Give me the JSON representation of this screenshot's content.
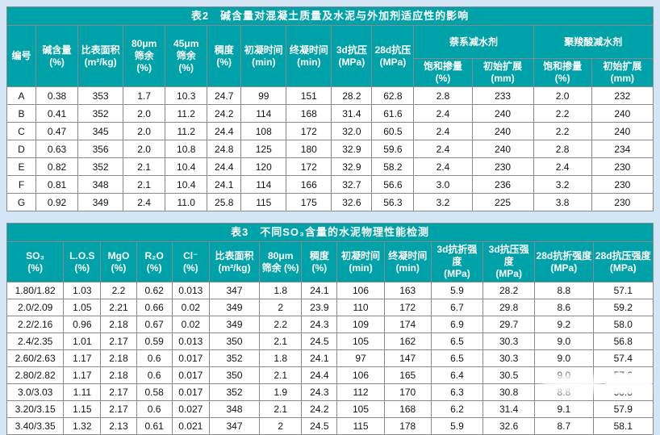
{
  "page": {
    "background_color": "#d3e5f4",
    "header_color": "#00a2aa",
    "cell_color": "#ffffff",
    "border_color": "#8a8a8a"
  },
  "table2": {
    "title": "表2　碱含量对混凝土质量及水泥与外加剂适应性的影响",
    "columns": {
      "no": "编号",
      "alkali": "碱含量\n(%)",
      "surface": "比表面积\n(m²/kg)",
      "sieve80": "80μm\n筛余\n(%)",
      "sieve45": "45μm\n筛余\n(%)",
      "consistency": "稠度\n(%)",
      "initial_set": "初凝时间\n(min)",
      "final_set": "终凝时间\n(min)",
      "comp3d": "3d抗压\n(MPa)",
      "comp28d": "28d抗压\n(MPa)",
      "naphthalene_group": "萘系减水剂",
      "polycarboxylate_group": "聚羧酸减水剂",
      "sat_dosage_n": "饱和掺量\n(%)",
      "init_spread_n": "初始扩展\n(mm)",
      "sat_dosage_p": "饱和掺量\n(%)",
      "init_spread_p": "初始扩展\n(mm)"
    },
    "rows": [
      [
        "A",
        "0.38",
        "353",
        "1.7",
        "10.3",
        "24.7",
        "99",
        "151",
        "28.2",
        "62.8",
        "2.8",
        "233",
        "2.0",
        "232"
      ],
      [
        "B",
        "0.41",
        "352",
        "2.0",
        "11.2",
        "24.2",
        "114",
        "168",
        "31.4",
        "61.6",
        "2.4",
        "240",
        "2.2",
        "240"
      ],
      [
        "C",
        "0.47",
        "345",
        "2.0",
        "11.2",
        "24.4",
        "108",
        "172",
        "32.0",
        "60.5",
        "2.4",
        "240",
        "2.2",
        "240"
      ],
      [
        "D",
        "0.63",
        "356",
        "2.0",
        "10.8",
        "24.8",
        "125",
        "180",
        "32.9",
        "59.6",
        "2.4",
        "240",
        "2.8",
        "234"
      ],
      [
        "E",
        "0.82",
        "352",
        "2.1",
        "10.4",
        "24.4",
        "120",
        "172",
        "32.9",
        "58.2",
        "2.4",
        "230",
        "2.4",
        "230"
      ],
      [
        "F",
        "0.81",
        "348",
        "2.1",
        "10.4",
        "24.1",
        "114",
        "166",
        "32.7",
        "56.6",
        "3.0",
        "236",
        "3.2",
        "230"
      ],
      [
        "G",
        "0.92",
        "349",
        "2.4",
        "11.0",
        "25.8",
        "115",
        "175",
        "32.6",
        "56.3",
        "3.2",
        "225",
        "3.8",
        "230"
      ]
    ]
  },
  "table3": {
    "title": "表3　不同SO₃含量的水泥物理性能检测",
    "columns": [
      "SO₃\n(%)",
      "L.O.S\n(%)",
      "MgO\n(%)",
      "R₂O\n(%)",
      "Cl⁻\n(%)",
      "比表面积\n(m²/kg)",
      "80μm\n筛余 (%)",
      "稠度\n(%)",
      "初凝时间\n(min)",
      "终凝时间\n(min)",
      "3d抗折强度\n(MPa)",
      "3d抗压强度\n(MPa)",
      "28d抗折强度\n(MPa)",
      "28d抗压强度\n(MPa)"
    ],
    "rows": [
      [
        "1.80/1.82",
        "1.03",
        "2.2",
        "0.62",
        "0.013",
        "347",
        "1.8",
        "24.1",
        "106",
        "163",
        "5.9",
        "28.2",
        "8.8",
        "57.1"
      ],
      [
        "2.0/2.09",
        "1.05",
        "2.21",
        "0.66",
        "0.02",
        "349",
        "2",
        "23.9",
        "110",
        "172",
        "6.7",
        "29.8",
        "8.6",
        "59.2"
      ],
      [
        "2.2/2.16",
        "0.96",
        "2.18",
        "0.67",
        "0.02",
        "349",
        "2.2",
        "24.3",
        "109",
        "174",
        "6.9",
        "29.7",
        "9.2",
        "58.0"
      ],
      [
        "2.4/2.35",
        "1.01",
        "2.17",
        "0.59",
        "0.013",
        "350",
        "2.1",
        "24.5",
        "105",
        "162",
        "6.5",
        "30.3",
        "9.0",
        "56.8"
      ],
      [
        "2.60/2.63",
        "1.17",
        "2.18",
        "0.6",
        "0.017",
        "352",
        "1.8",
        "24.1",
        "97",
        "147",
        "6.5",
        "30.3",
        "9.0",
        "57.4"
      ],
      [
        "2.80/2.82",
        "1.17",
        "2.18",
        "0.6",
        "0.017",
        "350",
        "2.1",
        "24.4",
        "106",
        "165",
        "6.4",
        "30.5",
        "9.0",
        "57.6"
      ],
      [
        "3.0/3.03",
        "1.11",
        "2.17",
        "0.58",
        "0.017",
        "352",
        "1.9",
        "24.3",
        "112",
        "170",
        "6.3",
        "30.8",
        "8.8",
        "58.8"
      ],
      [
        "3.20/3.15",
        "1.15",
        "2.17",
        "0.6",
        "0.027",
        "348",
        "2.1",
        "24.2",
        "105",
        "168",
        "6.2",
        "31.4",
        "9.1",
        "57.9"
      ],
      [
        "3.40/3.35",
        "1.32",
        "2.13",
        "0.61",
        "0.021",
        "347",
        "2",
        "24.5",
        "115",
        "178",
        "5.9",
        "32.6",
        "8.7",
        "58.1"
      ]
    ]
  }
}
